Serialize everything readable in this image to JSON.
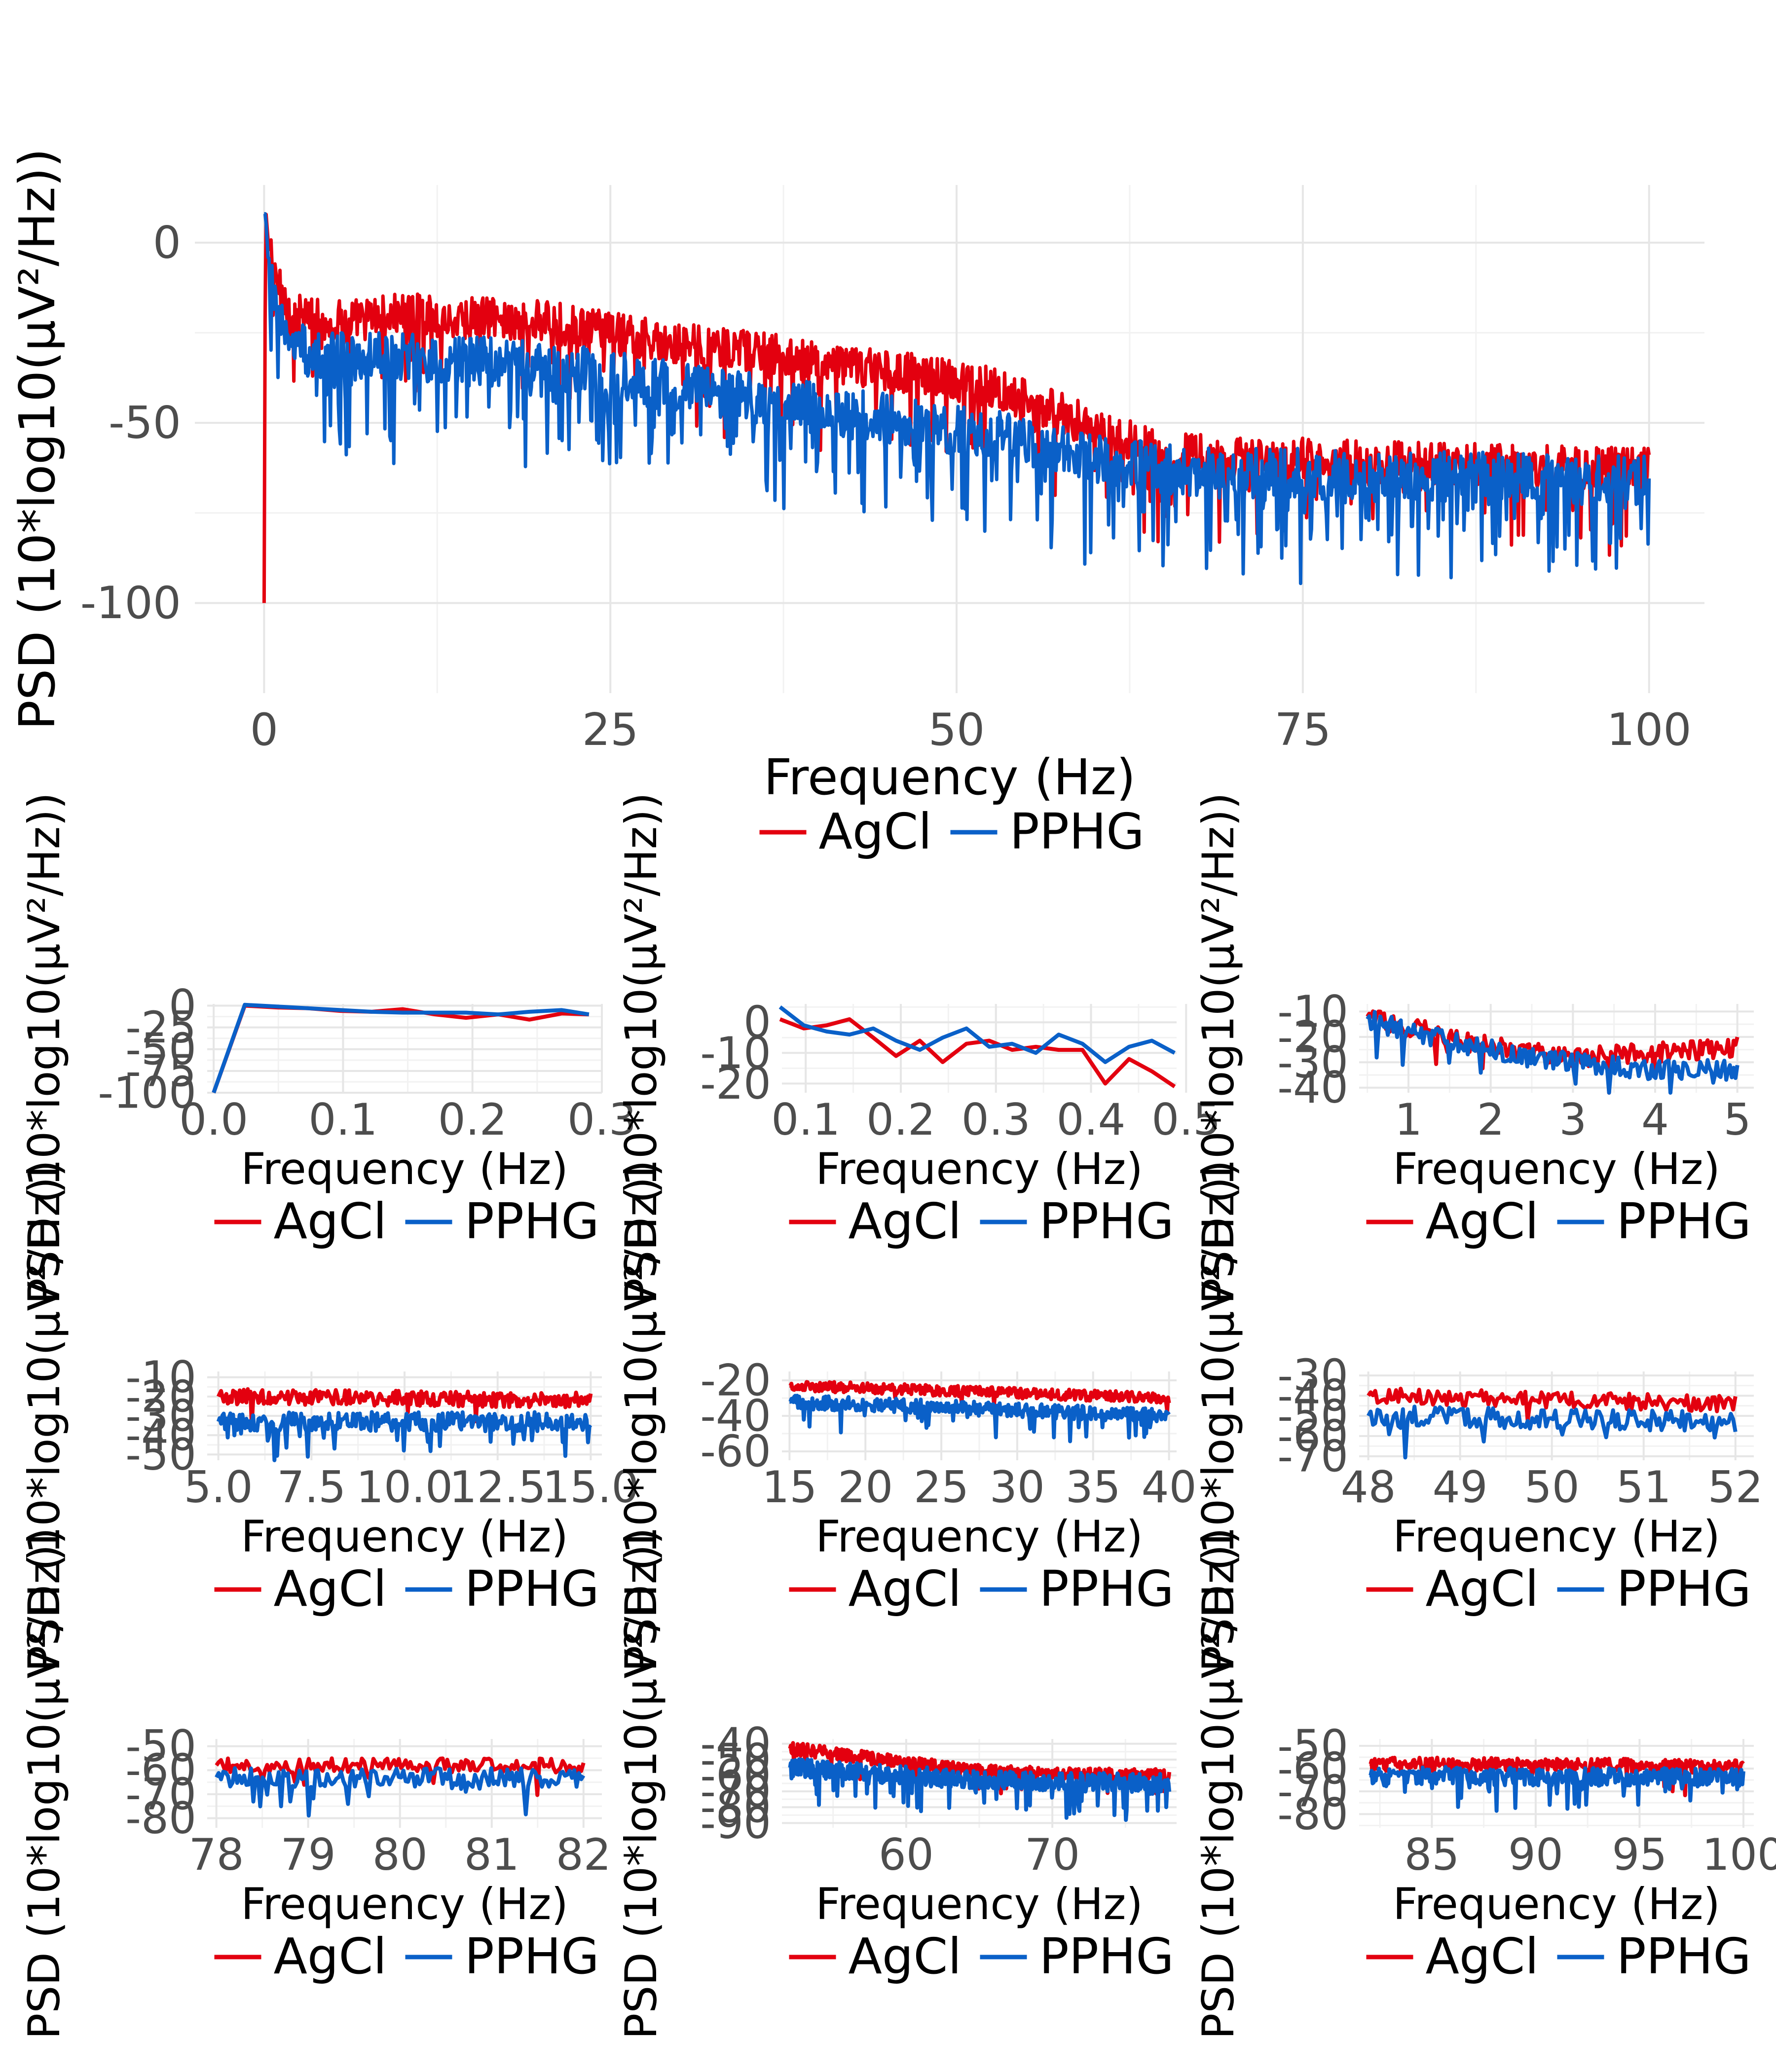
{
  "colors": {
    "agcl": "#e3000f",
    "pphg": "#0a60c8",
    "grid_major": "#e6e6e6",
    "grid_minor": "#f2f2f2"
  },
  "legend": [
    "AgCl",
    "PPHG"
  ],
  "chart_data": [
    {
      "type": "line",
      "id": "full",
      "xlabel": "Frequency (Hz)",
      "ylabel": "PSD (10*log10(µV²/Hz))",
      "xlim": [
        -5,
        104
      ],
      "ylim": [
        -125,
        16
      ],
      "xticks": [
        0,
        25,
        50,
        75,
        100
      ],
      "yticks": [
        0,
        -50,
        -100
      ],
      "xtick_labels": [
        "0",
        "25",
        "50",
        "75",
        "100"
      ],
      "ytick_labels": [
        "0",
        "-50",
        "-100"
      ],
      "series": [
        {
          "name": "AgCl",
          "x": [
            0,
            0.1,
            0.3,
            1,
            2,
            5,
            10,
            20,
            25,
            30,
            40,
            50,
            55,
            60,
            65,
            70,
            75,
            80,
            90,
            100
          ],
          "y": [
            -100,
            10,
            0,
            -12,
            -20,
            -22,
            -20,
            -22,
            -25,
            -28,
            -33,
            -38,
            -43,
            -52,
            -58,
            -60,
            -60,
            -61,
            -62,
            -63
          ],
          "spread": 6,
          "dips": 12,
          "n_points": 1400
        },
        {
          "name": "PPHG",
          "x": [
            0,
            0.1,
            0.3,
            1,
            2,
            5,
            10,
            20,
            25,
            30,
            40,
            50,
            55,
            60,
            65,
            70,
            75,
            80,
            90,
            100
          ],
          "y": [
            8,
            8,
            -5,
            -20,
            -28,
            -32,
            -32,
            -34,
            -37,
            -40,
            -46,
            -52,
            -55,
            -60,
            -63,
            -64,
            -64,
            -65,
            -65,
            -66
          ],
          "spread": 7,
          "dips": 20,
          "n_points": 1400
        }
      ]
    },
    {
      "type": "line",
      "id": "p1",
      "xlabel": "Frequency (Hz)",
      "ylabel": "PSD (10*log10(µV²/Hz))",
      "xlim": [
        -0.005,
        0.3
      ],
      "ylim": [
        -100,
        2
      ],
      "xticks": [
        0,
        0.1,
        0.2,
        0.3
      ],
      "yticks": [
        0,
        -25,
        -50,
        -75,
        -100
      ],
      "xtick_labels": [
        "0.0",
        "0.1",
        "0.2",
        "0.3"
      ],
      "ytick_labels": [
        "0",
        "-25",
        "-50",
        "-75",
        "-100"
      ],
      "series": [
        {
          "name": "AgCl",
          "x": [
            0,
            0.024,
            0.049,
            0.073,
            0.098,
            0.122,
            0.146,
            0.171,
            0.195,
            0.22,
            0.244,
            0.269,
            0.29
          ],
          "y": [
            -100,
            0,
            -2,
            -3,
            -6,
            -7,
            -4,
            -10,
            -14,
            -10,
            -16,
            -9,
            -10
          ]
        },
        {
          "name": "PPHG",
          "x": [
            0,
            0.024,
            0.049,
            0.073,
            0.098,
            0.122,
            0.146,
            0.171,
            0.195,
            0.22,
            0.244,
            0.269,
            0.29
          ],
          "y": [
            -100,
            1,
            -1,
            -3,
            -5,
            -7,
            -8,
            -8,
            -8,
            -10,
            -7,
            -5,
            -10
          ]
        }
      ]
    },
    {
      "type": "line",
      "id": "p2",
      "xlabel": "Frequency (Hz)",
      "ylabel": "PSD (10*log10(µV²/Hz))",
      "xlim": [
        0.075,
        0.49
      ],
      "ylim": [
        -23,
        6
      ],
      "xticks": [
        0.1,
        0.2,
        0.3,
        0.4,
        0.5
      ],
      "yticks": [
        0,
        -10,
        -20
      ],
      "xtick_labels": [
        "0.1",
        "0.2",
        "0.3",
        "0.4",
        "0.5"
      ],
      "ytick_labels": [
        "0",
        "-10",
        "-20"
      ],
      "series": [
        {
          "name": "AgCl",
          "x": [
            0.073,
            0.098,
            0.122,
            0.146,
            0.171,
            0.195,
            0.22,
            0.244,
            0.269,
            0.293,
            0.317,
            0.342,
            0.366,
            0.391,
            0.415,
            0.44,
            0.464,
            0.488
          ],
          "y": [
            1,
            -2,
            -1,
            1,
            -5,
            -11,
            -6,
            -13,
            -7,
            -6,
            -9,
            -8,
            -9,
            -9,
            -20,
            -12,
            -16,
            -21
          ]
        },
        {
          "name": "PPHG",
          "x": [
            0.073,
            0.098,
            0.122,
            0.146,
            0.171,
            0.195,
            0.22,
            0.244,
            0.269,
            0.293,
            0.317,
            0.342,
            0.366,
            0.391,
            0.415,
            0.44,
            0.464,
            0.488
          ],
          "y": [
            5,
            -1,
            -3,
            -4,
            -2,
            -6,
            -9,
            -5,
            -2,
            -8,
            -7,
            -10,
            -4,
            -7,
            -13,
            -8,
            -6,
            -10
          ]
        }
      ]
    },
    {
      "type": "line",
      "id": "p3",
      "xlabel": "Frequency (Hz)",
      "ylabel": "PSD (10*log10(µV²/Hz))",
      "xlim": [
        0.4,
        5.2
      ],
      "ylim": [
        -42,
        -7
      ],
      "xticks": [
        1,
        2,
        3,
        4,
        5
      ],
      "yticks": [
        -10,
        -20,
        -30,
        -40
      ],
      "xtick_labels": [
        "1",
        "2",
        "3",
        "4",
        "5"
      ],
      "ytick_labels": [
        "-10",
        "-20",
        "-30",
        "-40"
      ],
      "series": [
        {
          "name": "AgCl",
          "x": [
            0.5,
            1,
            2,
            3,
            4,
            5
          ],
          "y": [
            -12,
            -16,
            -24,
            -28,
            -26,
            -24
          ],
          "spread": 4,
          "dips": 4,
          "n_points": 200
        },
        {
          "name": "PPHG",
          "x": [
            0.5,
            1,
            2,
            3,
            4,
            5
          ],
          "y": [
            -13,
            -18,
            -25,
            -30,
            -33,
            -33
          ],
          "spread": 4,
          "dips": 4,
          "n_points": 200
        }
      ]
    },
    {
      "type": "line",
      "id": "p4",
      "xlabel": "Frequency (Hz)",
      "ylabel": "PSD (10*log10(µV²/Hz))",
      "xlim": [
        4.7,
        15.3
      ],
      "ylim": [
        -53,
        -7
      ],
      "xticks": [
        5,
        7.5,
        10,
        12.5,
        15
      ],
      "yticks": [
        -10,
        -20,
        -30,
        -40,
        -50
      ],
      "xtick_labels": [
        "5.0",
        "7.5",
        "10.0",
        "12.5",
        "15.0"
      ],
      "ytick_labels": [
        "-10",
        "-20",
        "-30",
        "-40",
        "-50"
      ],
      "series": [
        {
          "name": "AgCl",
          "x": [
            5,
            15
          ],
          "y": [
            -20,
            -22
          ],
          "spread": 4,
          "dips": 3,
          "n_points": 280
        },
        {
          "name": "PPHG",
          "x": [
            5,
            15
          ],
          "y": [
            -33,
            -33
          ],
          "spread": 5,
          "dips": 10,
          "n_points": 280
        }
      ]
    },
    {
      "type": "line",
      "id": "p5",
      "xlabel": "Frequency (Hz)",
      "ylabel": "PSD (10*log10(µV²/Hz))",
      "xlim": [
        14.5,
        40.5
      ],
      "ylim": [
        -65,
        -15
      ],
      "xticks": [
        15,
        20,
        25,
        30,
        35,
        40
      ],
      "yticks": [
        -20,
        -40,
        -60
      ],
      "xtick_labels": [
        "15",
        "20",
        "25",
        "30",
        "35",
        "40"
      ],
      "ytick_labels": [
        "-20",
        "-40",
        "-60"
      ],
      "series": [
        {
          "name": "AgCl",
          "x": [
            15,
            40
          ],
          "y": [
            -23,
            -30
          ],
          "spread": 3,
          "dips": 3,
          "n_points": 400
        },
        {
          "name": "PPHG",
          "x": [
            15,
            40
          ],
          "y": [
            -32,
            -40
          ],
          "spread": 4,
          "dips": 10,
          "n_points": 400
        }
      ]
    },
    {
      "type": "line",
      "id": "p6",
      "xlabel": "Frequency (Hz)",
      "ylabel": "PSD (10*log10(µV²/Hz))",
      "xlim": [
        47.9,
        52.2
      ],
      "ylim": [
        -72,
        -28
      ],
      "xticks": [
        48,
        49,
        50,
        51,
        52
      ],
      "yticks": [
        -30,
        -40,
        -50,
        -60,
        -70
      ],
      "xtick_labels": [
        "48",
        "49",
        "50",
        "51",
        "52"
      ],
      "ytick_labels": [
        "-30",
        "-40",
        "-50",
        "-60",
        "-70"
      ],
      "series": [
        {
          "name": "AgCl",
          "x": [
            48,
            52
          ],
          "y": [
            -40,
            -44
          ],
          "spread": 4,
          "dips": 2,
          "n_points": 160
        },
        {
          "name": "PPHG",
          "x": [
            48,
            52
          ],
          "y": [
            -50,
            -53
          ],
          "spread": 5,
          "dips": 8,
          "n_points": 160
        }
      ]
    },
    {
      "type": "line",
      "id": "p7",
      "xlabel": "Frequency (Hz)",
      "ylabel": "PSD (10*log10(µV²/Hz))",
      "xlim": [
        77.9,
        82.2
      ],
      "ylim": [
        -84,
        -47
      ],
      "xticks": [
        78,
        79,
        80,
        81,
        82
      ],
      "yticks": [
        -50,
        -60,
        -70,
        -80
      ],
      "xtick_labels": [
        "78",
        "79",
        "80",
        "81",
        "82"
      ],
      "ytick_labels": [
        "-50",
        "-60",
        "-70",
        "-80"
      ],
      "series": [
        {
          "name": "AgCl",
          "x": [
            78,
            82
          ],
          "y": [
            -58,
            -58
          ],
          "spread": 3,
          "dips": 4,
          "n_points": 160
        },
        {
          "name": "PPHG",
          "x": [
            78,
            82
          ],
          "y": [
            -63,
            -63
          ],
          "spread": 4,
          "dips": 10,
          "n_points": 160
        }
      ]
    },
    {
      "type": "line",
      "id": "p8",
      "xlabel": "Frequency (Hz)",
      "ylabel": "PSD (10*log10(µV²/Hz))",
      "xlim": [
        51.5,
        78.5
      ],
      "ylim": [
        -93,
        -37
      ],
      "xticks": [
        60,
        70
      ],
      "yticks": [
        -40,
        -50,
        -60,
        -70,
        -80,
        -90
      ],
      "xtick_labels": [
        "60",
        "70"
      ],
      "ytick_labels": [
        "-40",
        "-50",
        "-60",
        "-70",
        "-80",
        "-90"
      ],
      "series": [
        {
          "name": "AgCl",
          "x": [
            52,
            55,
            60,
            65,
            70,
            78
          ],
          "y": [
            -43,
            -46,
            -52,
            -57,
            -59,
            -60
          ],
          "spread": 4,
          "dips": 6,
          "n_points": 500
        },
        {
          "name": "PPHG",
          "x": [
            52,
            55,
            60,
            65,
            70,
            78
          ],
          "y": [
            -55,
            -57,
            -60,
            -63,
            -64,
            -65
          ],
          "spread": 6,
          "dips": 14,
          "n_points": 500
        }
      ]
    },
    {
      "type": "line",
      "id": "p9",
      "xlabel": "Frequency (Hz)",
      "ylabel": "PSD (10*log10(µV²/Hz))",
      "xlim": [
        81.5,
        100.5
      ],
      "ylim": [
        -86,
        -47
      ],
      "xticks": [
        85,
        90,
        95,
        100
      ],
      "yticks": [
        -50,
        -60,
        -70,
        -80
      ],
      "xtick_labels": [
        "85",
        "90",
        "95",
        "100"
      ],
      "ytick_labels": [
        "-50",
        "-60",
        "-70",
        "-80"
      ],
      "series": [
        {
          "name": "AgCl",
          "x": [
            82,
            100
          ],
          "y": [
            -58,
            -59
          ],
          "spread": 3,
          "dips": 4,
          "n_points": 360
        },
        {
          "name": "PPHG",
          "x": [
            82,
            100
          ],
          "y": [
            -63,
            -64
          ],
          "spread": 4,
          "dips": 10,
          "n_points": 360
        }
      ]
    }
  ]
}
